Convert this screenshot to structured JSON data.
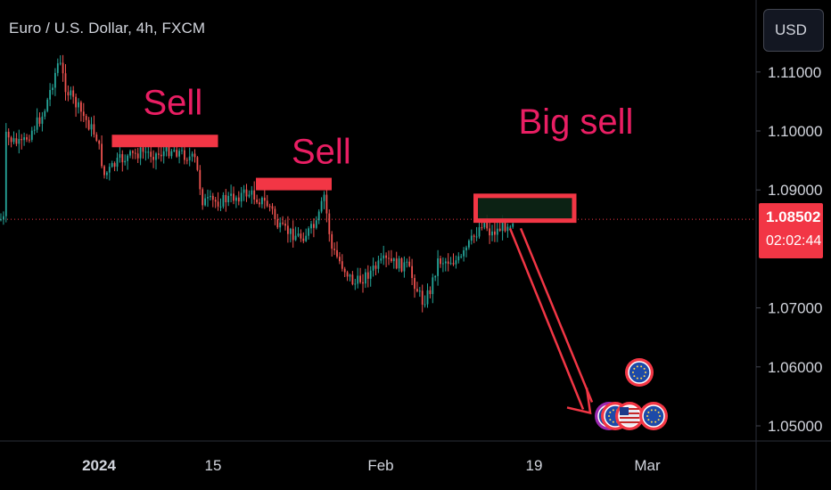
{
  "header": {
    "title": "Euro / U.S. Dollar, 4h, FXCM",
    "currency_label": "USD"
  },
  "price_tag": {
    "price": "1.08502",
    "countdown": "02:02:44"
  },
  "colors": {
    "background": "#000000",
    "up": "#26a69a",
    "down": "#ef5350",
    "annotation": "#e91e63",
    "zone": "#f23645",
    "zone_fill": "#0d2616"
  },
  "chart_data": {
    "type": "candlestick",
    "title": "Euro / U.S. Dollar, 4h, FXCM",
    "currency": "USD",
    "y_ticks": [
      "1.11000",
      "1.10000",
      "1.09000",
      "1.07000",
      "1.06000",
      "1.05000"
    ],
    "x_ticks": [
      "2024",
      "15",
      "Feb",
      "19",
      "Mar"
    ],
    "ylim": [
      1.045,
      1.122
    ],
    "last_price": 1.08502,
    "approx_path": [
      {
        "t": "Dec 21",
        "price": 1.099
      },
      {
        "t": "Dec 23",
        "price": 1.0975
      },
      {
        "t": "Dec 26",
        "price": 1.103
      },
      {
        "t": "Dec 28",
        "price": 1.112
      },
      {
        "t": "Dec 29",
        "price": 1.107
      },
      {
        "t": "Jan 2",
        "price": 1.099
      },
      {
        "t": "Jan 3",
        "price": 1.0925
      },
      {
        "t": "Jan 5",
        "price": 1.095
      },
      {
        "t": "Jan 8",
        "price": 1.0965
      },
      {
        "t": "Jan 10",
        "price": 1.096
      },
      {
        "t": "Jan 12",
        "price": 1.097
      },
      {
        "t": "Jan 15",
        "price": 1.095
      },
      {
        "t": "Jan 16",
        "price": 1.088
      },
      {
        "t": "Jan 18",
        "price": 1.088
      },
      {
        "t": "Jan 22",
        "price": 1.0895
      },
      {
        "t": "Jan 24",
        "price": 1.088
      },
      {
        "t": "Jan 25",
        "price": 1.087
      },
      {
        "t": "Jan 26",
        "price": 1.0835
      },
      {
        "t": "Jan 29",
        "price": 1.082
      },
      {
        "t": "Jan 31",
        "price": 1.084
      },
      {
        "t": "Feb 1",
        "price": 1.089
      },
      {
        "t": "Feb 2",
        "price": 1.08
      },
      {
        "t": "Feb 5",
        "price": 1.074
      },
      {
        "t": "Feb 7",
        "price": 1.076
      },
      {
        "t": "Feb 9",
        "price": 1.078
      },
      {
        "t": "Feb 12",
        "price": 1.077
      },
      {
        "t": "Feb 14",
        "price": 1.071
      },
      {
        "t": "Feb 15",
        "price": 1.073
      },
      {
        "t": "Feb 16",
        "price": 1.078
      },
      {
        "t": "Feb 19",
        "price": 1.078
      },
      {
        "t": "Feb 20",
        "price": 1.0805
      },
      {
        "t": "Feb 21",
        "price": 1.0825
      },
      {
        "t": "Feb 22",
        "price": 1.085
      },
      {
        "t": "Feb 23",
        "price": 1.0825
      },
      {
        "t": "Feb 26",
        "price": 1.085
      }
    ],
    "annotations": [
      {
        "label": "Sell",
        "zone_price": 1.0983,
        "start": "Jan 4",
        "end": "Jan 18"
      },
      {
        "label": "Sell",
        "zone_price": 1.091,
        "start": "Jan 23",
        "end": "Feb 2"
      },
      {
        "label": "Big sell",
        "zone_top": 1.089,
        "zone_bottom": 1.0848,
        "start": "Feb 21",
        "end": "Mar 5"
      }
    ],
    "projection": {
      "from": "Feb 26",
      "from_price": 1.085,
      "to": "Mar 5",
      "to_price": 1.0525
    }
  }
}
